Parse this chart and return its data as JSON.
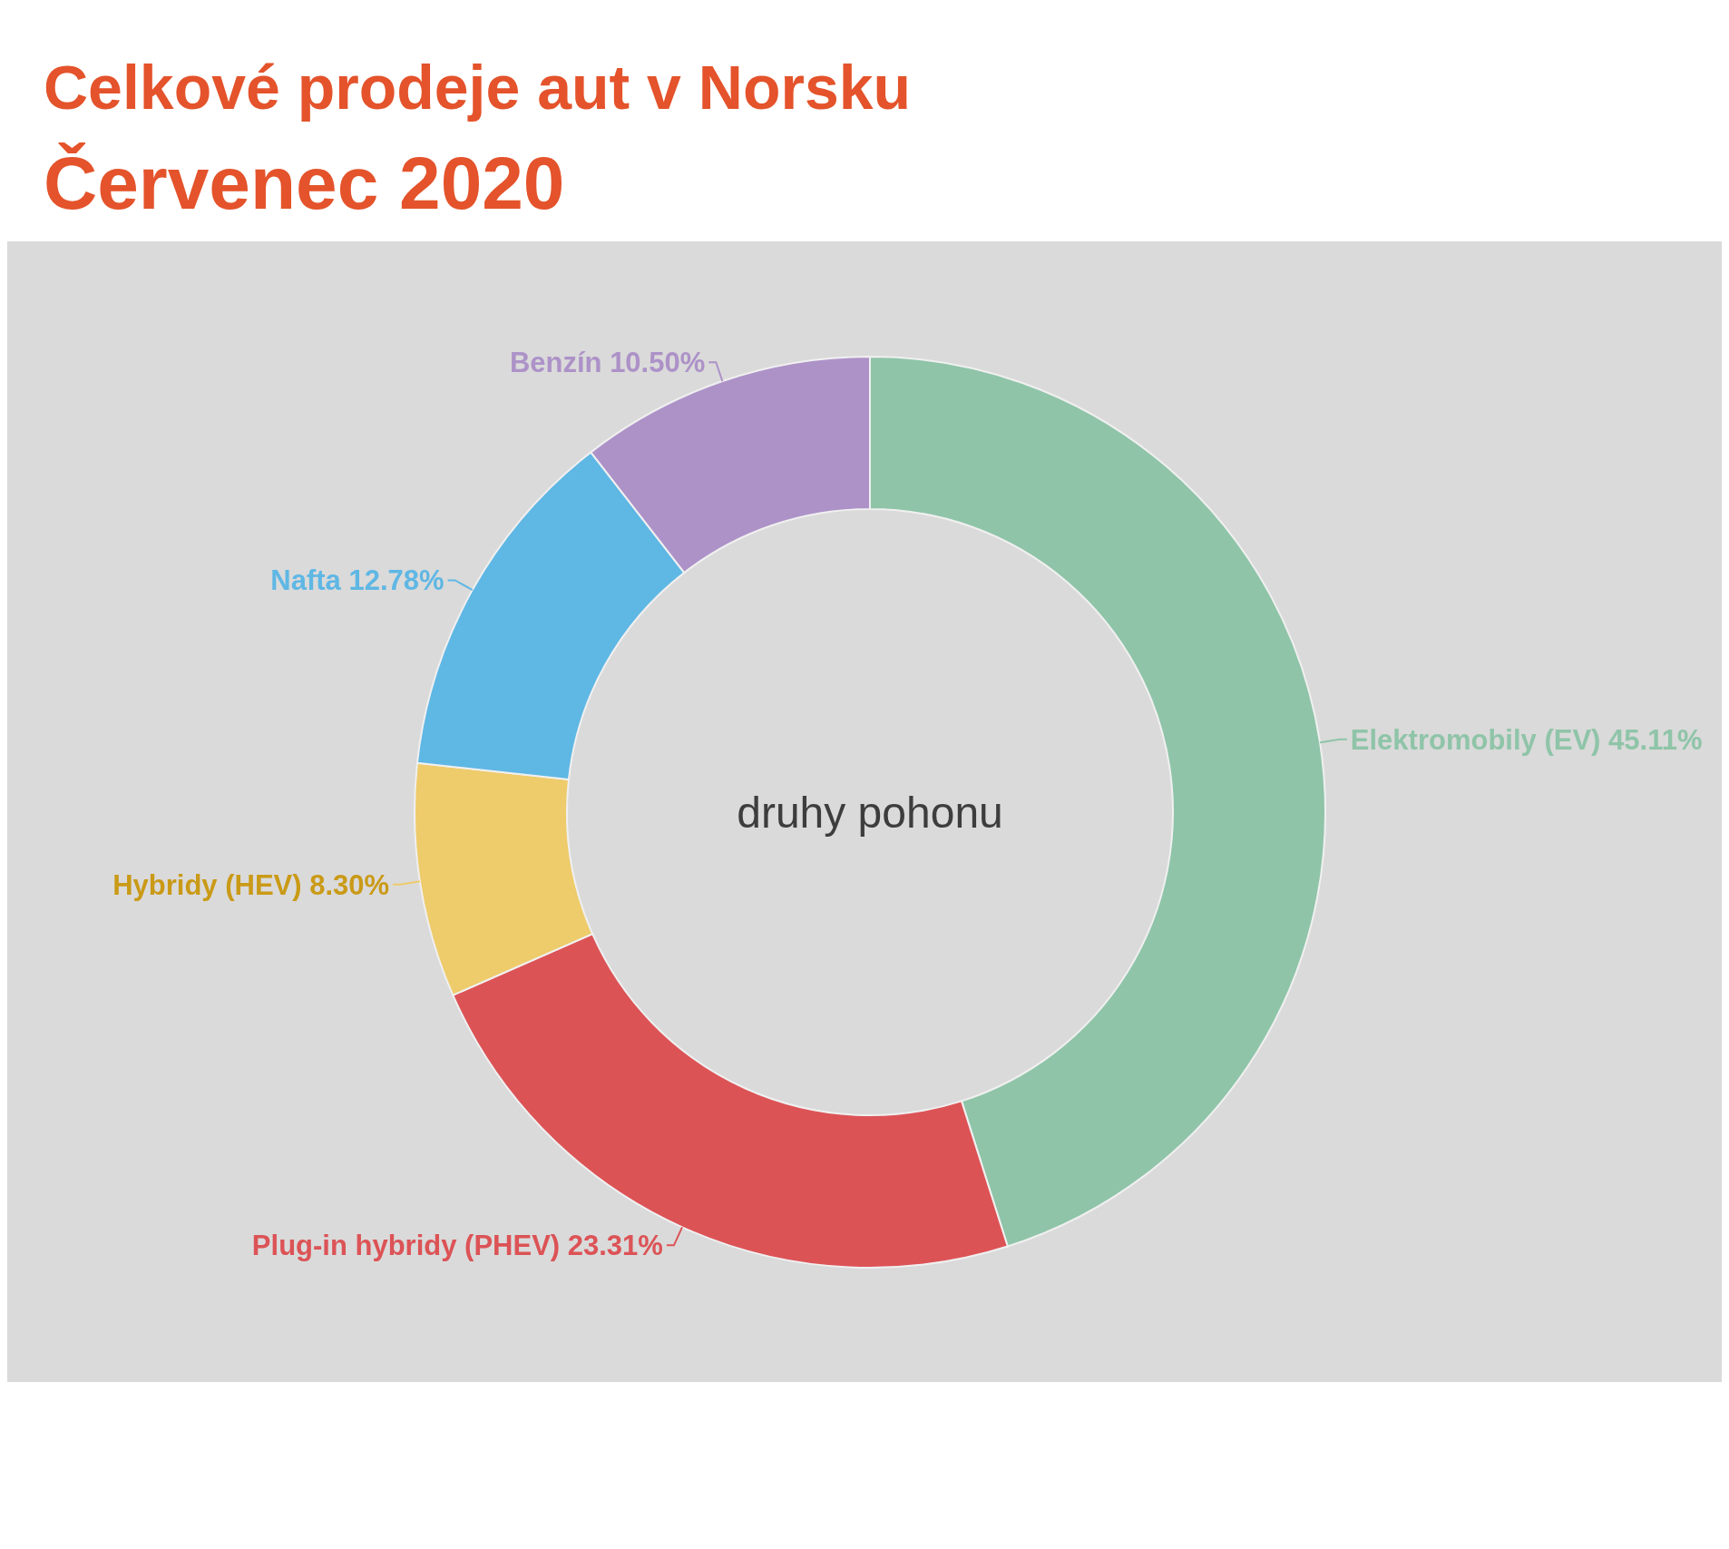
{
  "chart_data": {
    "type": "donut",
    "title": "Celkové prodeje aut v Norsku",
    "subtitle": "Červenec 2020",
    "categories": [
      "Elektromobily (EV)",
      "Plug-in hybridy (PHEV)",
      "Hybridy (HEV)",
      "Nafta",
      "Benzín"
    ],
    "values": [
      45.11,
      23.31,
      8.3,
      12.78,
      10.5
    ],
    "value_labels": [
      "45.11%",
      "23.31%",
      "8.30%",
      "12.78%",
      "10.50%"
    ],
    "colors": [
      "#8fc4a8",
      "#dc5356",
      "#eecb6b",
      "#5fb7e4",
      "#ad92c8"
    ],
    "annotations": [
      "druhy pohonu"
    ]
  }
}
